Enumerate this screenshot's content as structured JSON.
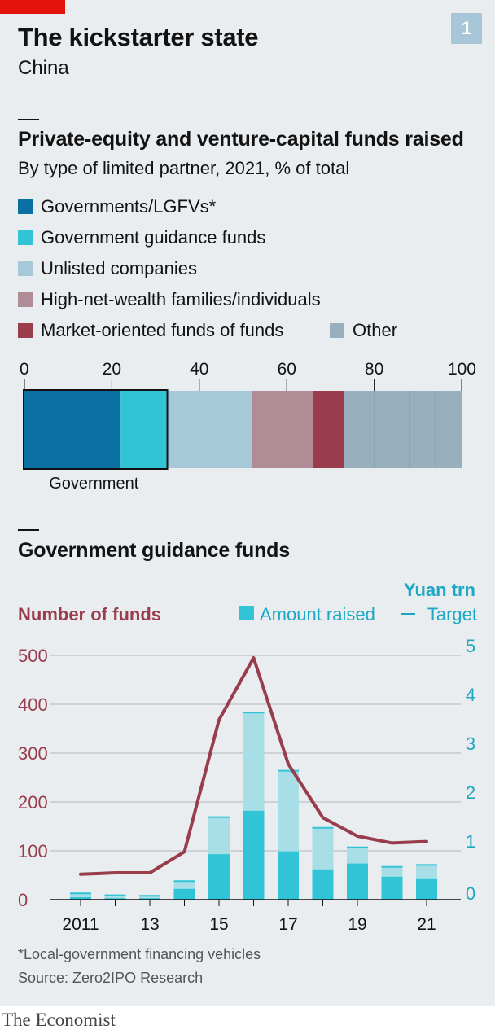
{
  "header": {
    "title": "The kickstarter state",
    "subtitle": "China",
    "badge": "1"
  },
  "footer": {
    "footnote": "*Local-government financing vehicles",
    "source": "Source: Zero2IPO Research",
    "brand": "The Economist"
  },
  "colors": {
    "governments": "#0a6fa3",
    "guidance": "#30c4d6",
    "unlisted": "#a7c8d8",
    "hnw": "#b08d96",
    "market_fof": "#993d4d",
    "other": "#98b0be",
    "number_line": "#993d4d",
    "amount_raised": "#30c4d6",
    "target": "#a8dfe6",
    "yuan_axis": "#1ca8c4"
  },
  "chart_data": [
    {
      "type": "bar",
      "orientation": "horizontal-stacked",
      "title": "Private-equity and venture-capital funds raised",
      "subtitle": "By type of limited partner, 2021, % of total",
      "xlim": [
        0,
        100
      ],
      "ticks": [
        0,
        20,
        40,
        60,
        80,
        100
      ],
      "series": [
        {
          "name": "Governments/LGFVs*",
          "key": "governments",
          "value": 22
        },
        {
          "name": "Government guidance funds",
          "key": "guidance",
          "value": 10.5
        },
        {
          "name": "Unlisted companies",
          "key": "unlisted",
          "value": 19.5
        },
        {
          "name": "High-net-wealth families/individuals",
          "key": "hnw",
          "value": 14
        },
        {
          "name": "Market-oriented funds of funds",
          "key": "market_fof",
          "value": 7
        },
        {
          "name": "Other",
          "key": "other",
          "value": 27
        }
      ],
      "bracket": {
        "label": "Government",
        "from": 0,
        "to": 32.5
      }
    },
    {
      "type": "bar",
      "title": "Government guidance funds",
      "left_axis": {
        "label": "Number of funds",
        "ylim": [
          0,
          500
        ],
        "ticks": [
          "0",
          "100",
          "200",
          "300",
          "400",
          "500"
        ]
      },
      "right_axis": {
        "label": "Yuan trn",
        "ylim": [
          0,
          5
        ],
        "ticks": [
          "0",
          "1",
          "2",
          "3",
          "4",
          "5"
        ]
      },
      "legend": {
        "amount": "Amount raised",
        "target": "Target"
      },
      "x": [
        2011,
        2012,
        2013,
        2014,
        2015,
        2016,
        2017,
        2018,
        2019,
        2020,
        2021
      ],
      "x_tick_labels": [
        "2011",
        "13",
        "15",
        "17",
        "19",
        "21"
      ],
      "x_tick_years": [
        2011,
        2013,
        2015,
        2017,
        2019,
        2021
      ],
      "series": [
        {
          "name": "Number of funds",
          "axis": "left",
          "mark": "line",
          "values": [
            52,
            55,
            55,
            98,
            368,
            495,
            278,
            168,
            130,
            116,
            119
          ]
        },
        {
          "name": "Amount raised",
          "axis": "right",
          "mark": "bar",
          "values": [
            0.05,
            0.03,
            0.03,
            0.22,
            0.93,
            1.82,
            0.99,
            0.62,
            0.74,
            0.47,
            0.42
          ]
        },
        {
          "name": "Target",
          "axis": "right",
          "mark": "bar",
          "values": [
            0.13,
            0.09,
            0.08,
            0.38,
            1.69,
            3.83,
            2.64,
            1.47,
            1.07,
            0.67,
            0.71
          ]
        }
      ]
    }
  ]
}
